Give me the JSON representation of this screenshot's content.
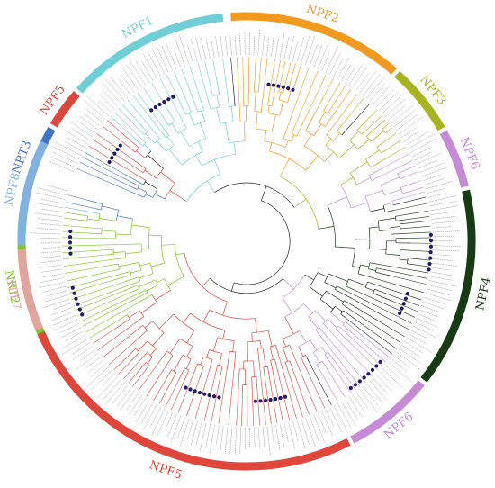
{
  "colors": {
    "NRT2": "#7cc71f",
    "NRT3": "#3f74c6",
    "NPF5": "#e0473a",
    "NPF1": "#6fcfd6",
    "NPF2": "#f19a1e",
    "NPF3": "#a8b41e",
    "NPF6": "#c78ad6",
    "NPF4": "#173b12",
    "NPF8": "#7fb1e3",
    "NPF7": "#e5a3a0",
    "tree": "#222222",
    "dot": "#1f1a6e"
  },
  "clades": [
    {
      "id": "nrt2-top",
      "label": "NRT2",
      "color_key": "NRT2",
      "start": 238,
      "end": 280
    },
    {
      "id": "nrt3-top",
      "label": "NRT3",
      "color_key": "NRT3",
      "start": 281,
      "end": 300
    },
    {
      "id": "npf5-top",
      "label": "NPF5",
      "color_key": "NPF5",
      "start": 301,
      "end": 311
    },
    {
      "id": "npf1",
      "label": "NPF1",
      "color_key": "NPF1",
      "start": 312,
      "end": 354
    },
    {
      "id": "npf2",
      "label": "NPF2",
      "color_key": "NPF2",
      "start": 356,
      "end": 41
    },
    {
      "id": "npf3",
      "label": "NPF3",
      "color_key": "NPF3",
      "start": 42,
      "end": 60
    },
    {
      "id": "npf6-right",
      "label": "NPF6",
      "color_key": "NPF6",
      "start": 61,
      "end": 76
    },
    {
      "id": "npf4",
      "label": "NPF4",
      "color_key": "NPF4",
      "start": 77,
      "end": 128
    },
    {
      "id": "npf6-bottom",
      "label": "NPF6",
      "color_key": "NPF6",
      "start": 129,
      "end": 152
    },
    {
      "id": "npf5-bottom",
      "label": "NPF5",
      "color_key": "NPF5",
      "start": 153,
      "end": 246
    },
    {
      "id": "npf7",
      "label": "NPF7",
      "color_key": "NPF7",
      "start": 247,
      "end": 268
    },
    {
      "id": "npf8",
      "label": "NPF8",
      "color_key": "NPF8",
      "start": 269,
      "end": 296
    }
  ]
}
